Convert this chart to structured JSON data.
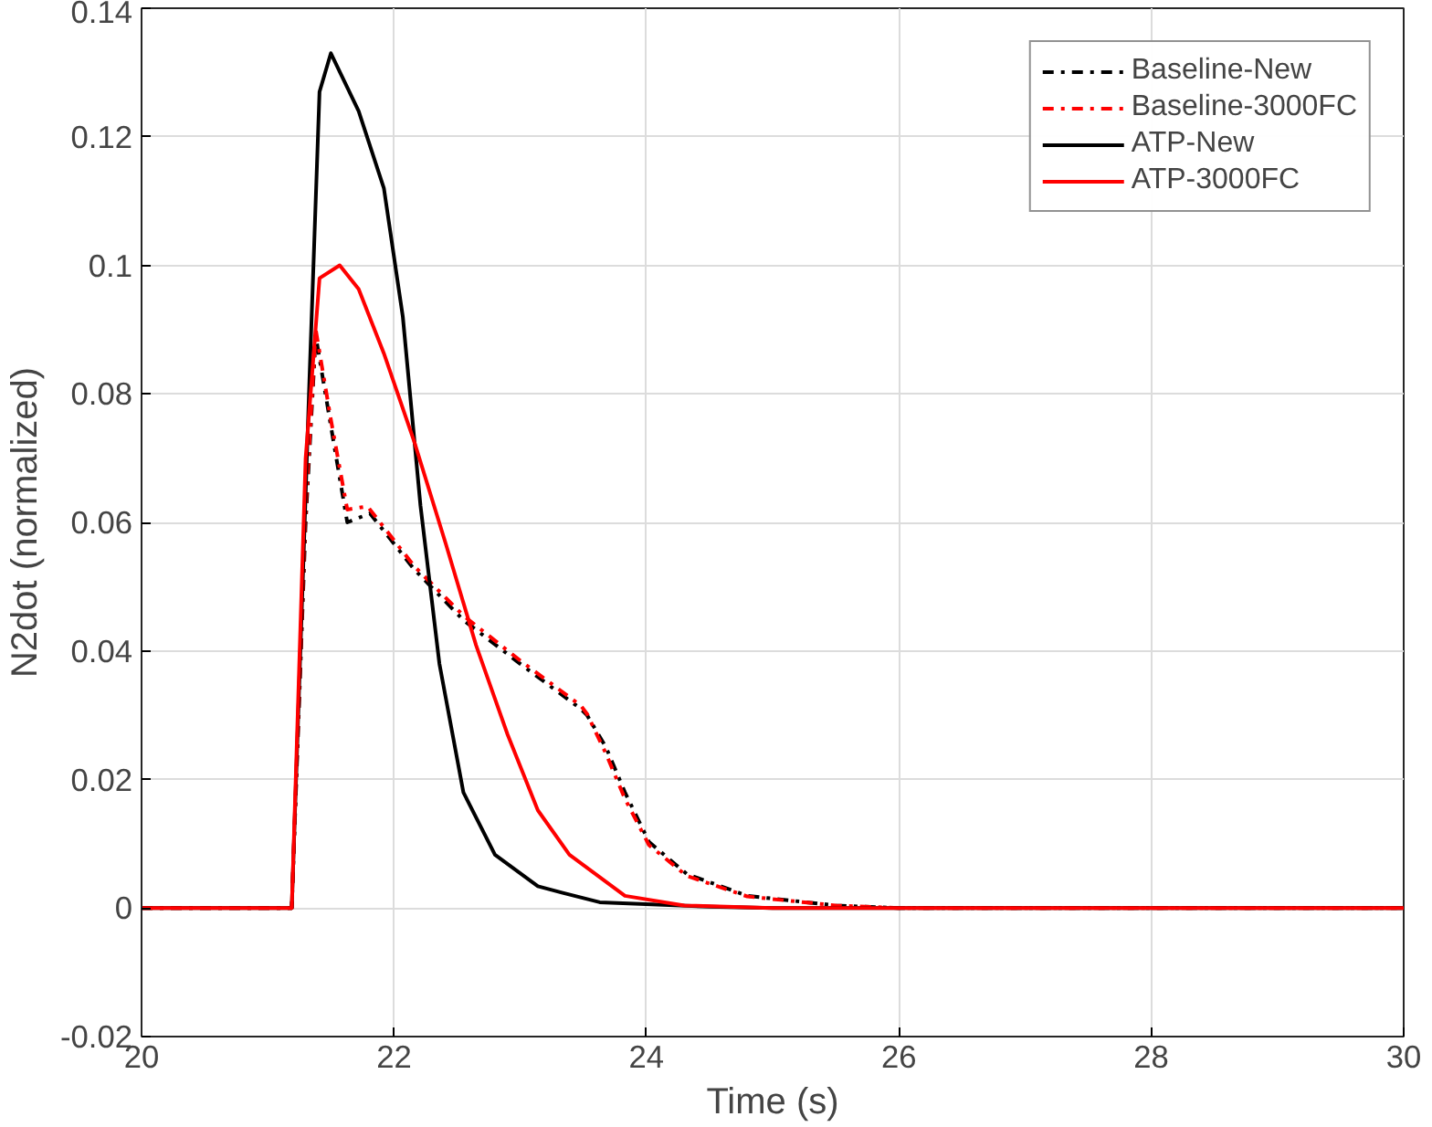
{
  "chart_data": {
    "type": "line",
    "xlabel": "Time (s)",
    "ylabel": "N2dot (normalized)",
    "xlim": [
      20,
      30
    ],
    "ylim": [
      -0.02,
      0.14
    ],
    "xticks": [
      20,
      22,
      24,
      26,
      28,
      30
    ],
    "yticks": [
      -0.02,
      0,
      0.02,
      0.04,
      0.06,
      0.08,
      0.1,
      0.12,
      0.14
    ],
    "grid": true,
    "legend": "top right",
    "series": [
      {
        "name": "Baseline-New",
        "color": "#000000",
        "line_style": "dashdot",
        "x": [
          20,
          21.19,
          21.3,
          21.38,
          21.5,
          21.63,
          21.81,
          22.16,
          22.55,
          23.0,
          23.48,
          23.53,
          23.68,
          23.83,
          24.02,
          24.32,
          24.8,
          25.5,
          26,
          30
        ],
        "values": [
          0,
          0,
          0.06,
          0.089,
          0.075,
          0.06,
          0.0614,
          0.0527,
          0.0448,
          0.038,
          0.031,
          0.03,
          0.025,
          0.018,
          0.0103,
          0.0053,
          0.0019,
          0.0004,
          0,
          0
        ]
      },
      {
        "name": "Baseline-3000FC",
        "color": "#ff0000",
        "line_style": "dashdot",
        "x": [
          20,
          21.19,
          21.3,
          21.38,
          21.5,
          21.63,
          21.79,
          22.16,
          22.55,
          23.0,
          23.48,
          23.53,
          23.68,
          23.83,
          24.02,
          24.32,
          24.8,
          25.5,
          26,
          30
        ],
        "values": [
          0,
          0,
          0.062,
          0.09,
          0.076,
          0.062,
          0.0625,
          0.0532,
          0.0455,
          0.0385,
          0.0315,
          0.0302,
          0.024,
          0.017,
          0.0098,
          0.005,
          0.0018,
          0.0004,
          0,
          0
        ]
      },
      {
        "name": "ATP-New",
        "color": "#000000",
        "line_style": "solid",
        "x": [
          20,
          21.19,
          21.33,
          21.41,
          21.5,
          21.72,
          21.92,
          22.07,
          22.21,
          22.36,
          22.55,
          22.8,
          23.14,
          23.33,
          23.63,
          24.5,
          25,
          30
        ],
        "values": [
          0,
          0,
          0.082,
          0.127,
          0.133,
          0.124,
          0.112,
          0.092,
          0.0626,
          0.038,
          0.018,
          0.0083,
          0.0034,
          0.0024,
          0.0009,
          0.0002,
          0,
          0
        ]
      },
      {
        "name": "ATP-3000FC",
        "color": "#ff0000",
        "line_style": "solid",
        "x": [
          20,
          21.19,
          21.3,
          21.41,
          21.57,
          21.72,
          21.92,
          22.16,
          22.41,
          22.65,
          22.9,
          23.14,
          23.39,
          23.83,
          24.3,
          25,
          30
        ],
        "values": [
          0,
          0,
          0.07,
          0.098,
          0.1,
          0.0963,
          0.0863,
          0.0726,
          0.0567,
          0.0409,
          0.027,
          0.0152,
          0.0083,
          0.0019,
          0.0004,
          0,
          0
        ]
      }
    ]
  }
}
